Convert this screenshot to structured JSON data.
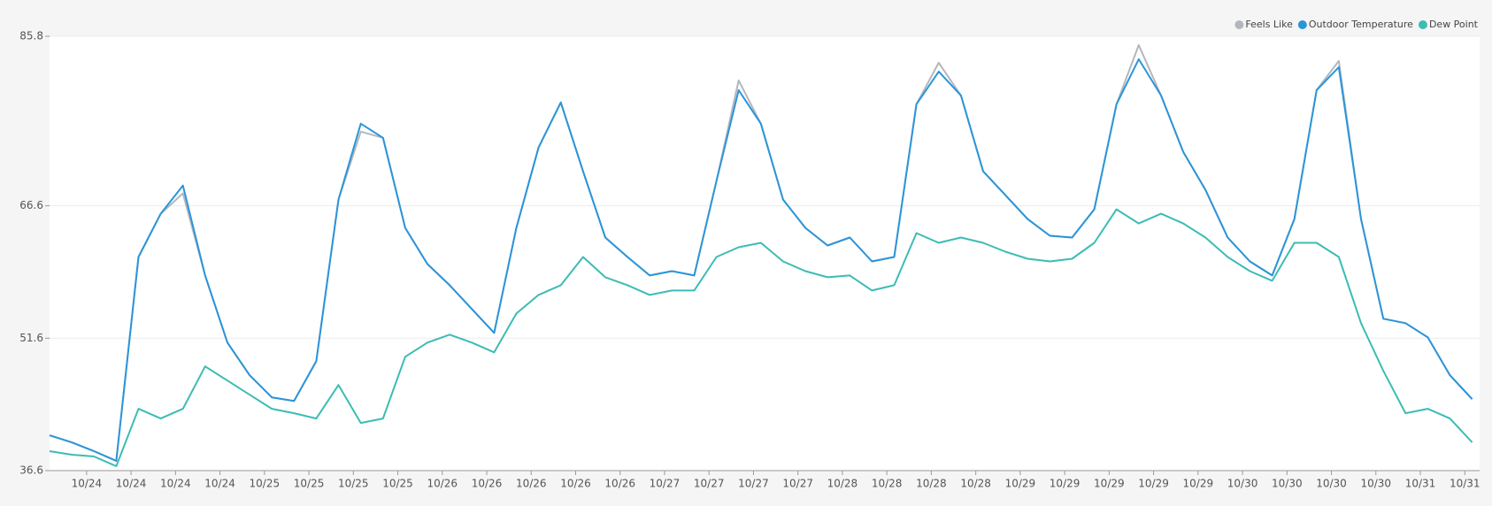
{
  "chart_data": {
    "type": "line",
    "x": [
      0,
      3,
      6,
      9,
      12,
      15,
      18,
      21,
      24,
      27,
      30,
      33,
      36,
      39,
      42,
      45,
      48,
      51,
      54,
      57,
      60,
      63,
      66,
      69,
      72,
      75,
      78,
      81,
      84,
      87,
      90,
      93,
      96,
      99,
      102,
      105,
      108,
      111,
      114,
      117,
      120,
      123,
      126,
      129,
      132,
      135,
      138,
      141,
      144,
      147,
      150,
      153,
      156,
      159,
      162,
      165,
      168,
      171,
      174,
      177,
      180,
      183,
      186,
      189,
      192
    ],
    "xlim": [
      0,
      193
    ],
    "xticks": [
      {
        "value": 5,
        "label": "10/24"
      },
      {
        "value": 11,
        "label": "10/24"
      },
      {
        "value": 17,
        "label": "10/24"
      },
      {
        "value": 23,
        "label": "10/24"
      },
      {
        "value": 29,
        "label": "10/25"
      },
      {
        "value": 35,
        "label": "10/25"
      },
      {
        "value": 41,
        "label": "10/25"
      },
      {
        "value": 47,
        "label": "10/25"
      },
      {
        "value": 53,
        "label": "10/26"
      },
      {
        "value": 59,
        "label": "10/26"
      },
      {
        "value": 65,
        "label": "10/26"
      },
      {
        "value": 71,
        "label": "10/26"
      },
      {
        "value": 77,
        "label": "10/26"
      },
      {
        "value": 83,
        "label": "10/27"
      },
      {
        "value": 89,
        "label": "10/27"
      },
      {
        "value": 95,
        "label": "10/27"
      },
      {
        "value": 101,
        "label": "10/27"
      },
      {
        "value": 107,
        "label": "10/28"
      },
      {
        "value": 113,
        "label": "10/28"
      },
      {
        "value": 119,
        "label": "10/28"
      },
      {
        "value": 125,
        "label": "10/28"
      },
      {
        "value": 131,
        "label": "10/29"
      },
      {
        "value": 137,
        "label": "10/29"
      },
      {
        "value": 143,
        "label": "10/29"
      },
      {
        "value": 149,
        "label": "10/29"
      },
      {
        "value": 155,
        "label": "10/29"
      },
      {
        "value": 161,
        "label": "10/30"
      },
      {
        "value": 167,
        "label": "10/30"
      },
      {
        "value": 173,
        "label": "10/30"
      },
      {
        "value": 179,
        "label": "10/30"
      },
      {
        "value": 185,
        "label": "10/31"
      },
      {
        "value": 191,
        "label": "10/31"
      }
    ],
    "ylim": [
      36.6,
      85.8
    ],
    "yticks": [
      36.6,
      51.6,
      66.6,
      85.8
    ],
    "grid": true,
    "legend": "top-right",
    "series": [
      {
        "name": "Feels Like",
        "color": "#b3b7bd",
        "values": [
          40.6,
          39.8,
          38.8,
          37.7,
          60.8,
          65.7,
          68.0,
          58.7,
          51.1,
          47.4,
          44.9,
          44.5,
          49,
          67.3,
          75.0,
          74.3,
          64.1,
          60,
          57.6,
          54.9,
          52.2,
          64.1,
          73.2,
          78.3,
          70.5,
          63,
          60.8,
          58.7,
          59.2,
          58.7,
          69.4,
          80.8,
          75.9,
          67.3,
          64.1,
          62.1,
          63,
          60.3,
          60.8,
          78.1,
          82.8,
          79.1,
          70.5,
          67.8,
          65.1,
          63.2,
          63,
          66.2,
          78.1,
          84.8,
          79.1,
          72.7,
          68.4,
          63,
          60.3,
          58.7,
          65.1,
          79.7,
          83.0,
          65.1,
          53.8,
          53.3,
          51.7,
          47.4,
          44.7
        ]
      },
      {
        "name": "Outdoor Temperature",
        "color": "#2b95d9",
        "values": [
          40.6,
          39.8,
          38.8,
          37.7,
          60.8,
          65.7,
          68.9,
          58.7,
          51.1,
          47.4,
          44.9,
          44.5,
          49,
          67.3,
          75.9,
          74.3,
          64.1,
          60,
          57.6,
          54.9,
          52.2,
          64.1,
          73.2,
          78.3,
          70.5,
          63,
          60.8,
          58.7,
          59.2,
          58.7,
          69.4,
          79.7,
          75.9,
          67.3,
          64.1,
          62.1,
          63,
          60.3,
          60.8,
          78.1,
          81.8,
          79.1,
          70.5,
          67.8,
          65.1,
          63.2,
          63,
          66.2,
          78.1,
          83.2,
          79.1,
          72.7,
          68.4,
          63,
          60.3,
          58.7,
          65.1,
          79.7,
          82.3,
          65.1,
          53.8,
          53.3,
          51.7,
          47.4,
          44.7
        ]
      },
      {
        "name": "Dew Point",
        "color": "#3cbcb4",
        "values": [
          38.8,
          38.4,
          38.2,
          37.1,
          43.6,
          42.5,
          43.6,
          48.4,
          46.8,
          45.2,
          43.6,
          43.1,
          42.5,
          46.3,
          42,
          42.5,
          49.5,
          51.1,
          52,
          51.1,
          50,
          54.4,
          56.5,
          57.6,
          60.8,
          58.5,
          57.6,
          56.5,
          57,
          57,
          60.8,
          61.9,
          62.4,
          60.3,
          59.2,
          58.5,
          58.7,
          57,
          57.6,
          63.5,
          62.4,
          63,
          62.4,
          61.4,
          60.6,
          60.3,
          60.6,
          62.4,
          66.2,
          64.6,
          65.7,
          64.6,
          63,
          60.8,
          59.2,
          58.1,
          62.4,
          62.4,
          60.8,
          53.3,
          47.9,
          43.1,
          43.6,
          42.5,
          39.8
        ]
      }
    ]
  }
}
